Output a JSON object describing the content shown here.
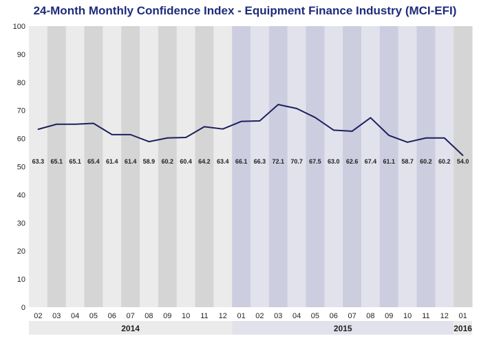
{
  "chart_data": {
    "type": "line",
    "title": "24-Month Monthly Confidence Index - Equipment Finance Industry (MCI-EFI)",
    "xlabel": "",
    "ylabel": "",
    "ylim": [
      0,
      100
    ],
    "yticks": [
      0,
      10,
      20,
      30,
      40,
      50,
      60,
      70,
      80,
      90,
      100
    ],
    "grid": false,
    "categories": [
      "02",
      "03",
      "04",
      "05",
      "06",
      "07",
      "08",
      "09",
      "10",
      "11",
      "12",
      "01",
      "02",
      "03",
      "04",
      "05",
      "06",
      "07",
      "08",
      "09",
      "10",
      "11",
      "12",
      "01"
    ],
    "years": [
      {
        "label": "2014",
        "months": 11
      },
      {
        "label": "2015",
        "months": 12
      },
      {
        "label": "2016",
        "months": 1
      }
    ],
    "values": [
      63.3,
      65.1,
      65.1,
      65.4,
      61.4,
      61.4,
      58.9,
      60.2,
      60.4,
      64.2,
      63.4,
      66.1,
      66.3,
      72.1,
      70.7,
      67.5,
      63.0,
      62.6,
      67.4,
      61.1,
      58.7,
      60.2,
      60.2,
      54.0
    ],
    "data_labels": [
      "63.3",
      "65.1",
      "65.1",
      "65.4",
      "61.4",
      "61.4",
      "58.9",
      "60.2",
      "60.4",
      "64.2",
      "63.4",
      "66.1",
      "66.3",
      "72.1",
      "70.7",
      "67.5",
      "63.0",
      "62.6",
      "67.4",
      "61.1",
      "58.7",
      "60.2",
      "60.2",
      "54.0"
    ],
    "colors": {
      "line": "#1c1f5c",
      "title": "#1f2b7b",
      "col2014_light": "#ebebeb",
      "col2014_dark": "#d5d5d5",
      "col2015_light": "#e2e2ed",
      "col2015_dark": "#cdcde0",
      "year2014_band": "#ebebeb",
      "year2015_band": "#e2e2ed"
    }
  }
}
